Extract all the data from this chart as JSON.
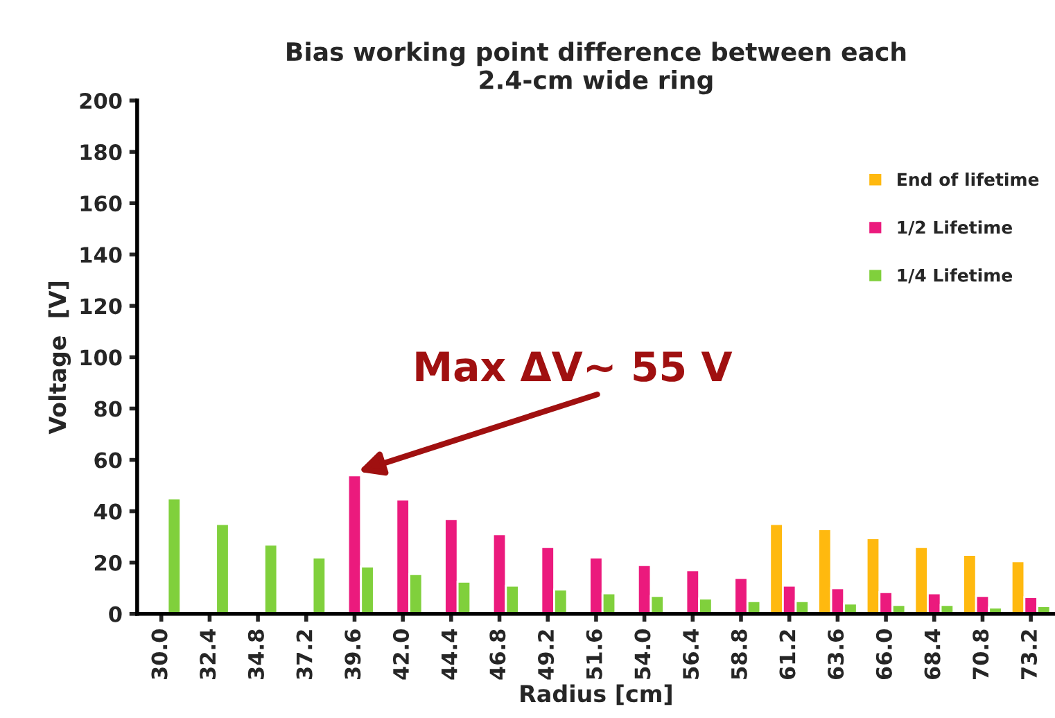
{
  "chart_data": {
    "type": "bar",
    "title": "Bias working point difference between each\n2.4-cm wide ring",
    "xlabel": "Radius [cm]",
    "ylabel": "Voltage  [V]",
    "categories": [
      "30.0",
      "32.4",
      "34.8",
      "37.2",
      "39.6",
      "42.0",
      "44.4",
      "46.8",
      "49.2",
      "51.6",
      "54.0",
      "56.4",
      "58.8",
      "61.2",
      "63.6",
      "66.0",
      "68.4",
      "70.8",
      "73.2"
    ],
    "series": [
      {
        "name": "End of lifetime",
        "color": "#ffb90f",
        "values": [
          null,
          null,
          null,
          null,
          null,
          null,
          null,
          null,
          null,
          null,
          null,
          null,
          null,
          35,
          33,
          29.5,
          26,
          23,
          20.5
        ]
      },
      {
        "name": "1/2 Lifetime",
        "color": "#eb1a7d",
        "values": [
          null,
          null,
          null,
          null,
          54,
          44.5,
          37,
          31,
          26,
          22,
          19,
          17,
          14,
          11,
          10,
          8.5,
          8,
          7,
          6.5
        ]
      },
      {
        "name": "1/4 Lifetime",
        "color": "#80d03c",
        "values": [
          45,
          35,
          27,
          22,
          18.5,
          15.5,
          12.5,
          11,
          9.5,
          8,
          7,
          6,
          5,
          5,
          4,
          3.5,
          3.5,
          2.5,
          3
        ]
      }
    ],
    "ylim": [
      0,
      200
    ],
    "yticks": [
      0,
      20,
      40,
      60,
      80,
      100,
      120,
      140,
      160,
      180,
      200
    ],
    "grid": false,
    "legend": "right",
    "annotations": [
      {
        "text": "Max ΔV~ 55 V",
        "x": "39.6",
        "y": 55
      }
    ]
  }
}
